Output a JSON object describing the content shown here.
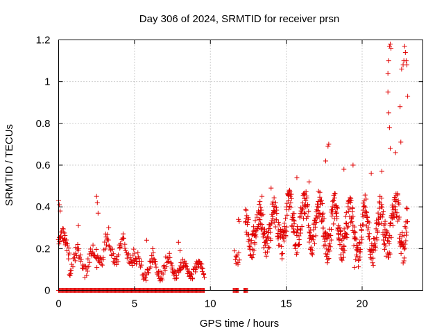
{
  "chart_data": {
    "type": "scatter",
    "title": "Day 306 of 2024, SRMTID for receiver prsn",
    "xlabel": "GPS time / hours",
    "ylabel": "SRMTID / TECUs",
    "xlim": [
      0,
      24
    ],
    "ylim": [
      0,
      1.2
    ],
    "xticks": [
      0,
      5,
      10,
      15,
      20
    ],
    "xtick_labels": [
      "0",
      "5",
      "10",
      "15",
      "20"
    ],
    "yticks": [
      0,
      0.2,
      0.4,
      0.6,
      0.8,
      1.0,
      1.2
    ],
    "ytick_labels": [
      "0",
      "0.2",
      "0.4",
      "0.6",
      "0.8",
      "1",
      "1.2"
    ],
    "grid": true,
    "marker": "+",
    "color": "#e00000",
    "segments": [
      {
        "x0": 0.0,
        "x1": 0.7,
        "base": 0.22,
        "amp": 0.05,
        "noise": 0.03,
        "n": 30,
        "spikes": [
          [
            0.0,
            0.43
          ],
          [
            0.05,
            0.41
          ],
          [
            0.1,
            0.38
          ],
          [
            0.15,
            0.26
          ],
          [
            0.3,
            0.28
          ]
        ]
      },
      {
        "x0": 0.7,
        "x1": 2.5,
        "base": 0.14,
        "amp": 0.05,
        "noise": 0.03,
        "n": 50,
        "spikes": [
          [
            1.3,
            0.31
          ]
        ]
      },
      {
        "x0": 2.5,
        "x1": 5.0,
        "base": 0.19,
        "amp": 0.06,
        "noise": 0.03,
        "n": 70,
        "spikes": [
          [
            2.5,
            0.45
          ],
          [
            2.55,
            0.42
          ],
          [
            2.6,
            0.37
          ],
          [
            3.3,
            0.3
          ],
          [
            3.1,
            0.27
          ]
        ]
      },
      {
        "x0": 5.0,
        "x1": 7.5,
        "base": 0.11,
        "amp": 0.05,
        "noise": 0.03,
        "n": 70,
        "spikes": [
          [
            5.8,
            0.24
          ],
          [
            6.2,
            0.2
          ]
        ]
      },
      {
        "x0": 7.5,
        "x1": 9.6,
        "base": 0.1,
        "amp": 0.03,
        "noise": 0.02,
        "n": 70,
        "spikes": [
          [
            7.9,
            0.23
          ],
          [
            8.0,
            0.19
          ]
        ]
      },
      {
        "x0": 11.6,
        "x1": 11.9,
        "base": 0.2,
        "amp": 0.06,
        "noise": 0.04,
        "n": 10,
        "spikes": [
          [
            11.85,
            0.34
          ],
          [
            11.9,
            0.33
          ]
        ]
      },
      {
        "x0": 12.3,
        "x1": 15.0,
        "base": 0.3,
        "amp": 0.08,
        "noise": 0.07,
        "n": 160,
        "spikes": [
          [
            14.0,
            0.49
          ],
          [
            13.4,
            0.45
          ]
        ]
      },
      {
        "x0": 15.0,
        "x1": 17.4,
        "base": 0.33,
        "amp": 0.09,
        "noise": 0.07,
        "n": 150,
        "spikes": [
          [
            15.7,
            0.54
          ],
          [
            16.5,
            0.52
          ]
        ]
      },
      {
        "x0": 17.4,
        "x1": 19.0,
        "base": 0.3,
        "amp": 0.1,
        "noise": 0.07,
        "n": 110,
        "spikes": [
          [
            17.8,
            0.7
          ],
          [
            17.75,
            0.69
          ],
          [
            17.6,
            0.62
          ],
          [
            18.8,
            0.58
          ]
        ]
      },
      {
        "x0": 19.0,
        "x1": 21.5,
        "base": 0.28,
        "amp": 0.11,
        "noise": 0.07,
        "n": 150,
        "spikes": [
          [
            19.5,
            0.11
          ],
          [
            19.4,
            0.6
          ],
          [
            20.6,
            0.56
          ],
          [
            21.3,
            0.57
          ]
        ]
      },
      {
        "x0": 21.5,
        "x1": 23.0,
        "base": 0.32,
        "amp": 0.12,
        "noise": 0.08,
        "n": 90,
        "spikes": [
          [
            21.8,
            1.17
          ],
          [
            21.85,
            1.18
          ],
          [
            21.9,
            1.16
          ],
          [
            21.75,
            1.1
          ],
          [
            21.7,
            1.04
          ],
          [
            21.7,
            0.95
          ],
          [
            21.75,
            0.85
          ],
          [
            21.8,
            0.78
          ],
          [
            21.85,
            0.68
          ],
          [
            22.2,
            0.66
          ],
          [
            22.5,
            0.88
          ],
          [
            22.55,
            0.71
          ],
          [
            22.6,
            1.06
          ],
          [
            22.7,
            1.08
          ],
          [
            22.75,
            1.1
          ],
          [
            22.8,
            1.17
          ],
          [
            22.85,
            1.14
          ],
          [
            22.9,
            1.1
          ],
          [
            22.95,
            1.08
          ],
          [
            23.0,
            0.93
          ]
        ]
      }
    ],
    "zero_ranges": [
      [
        0.0,
        9.6
      ],
      [
        11.5,
        11.85
      ],
      [
        12.2,
        12.45
      ]
    ]
  }
}
